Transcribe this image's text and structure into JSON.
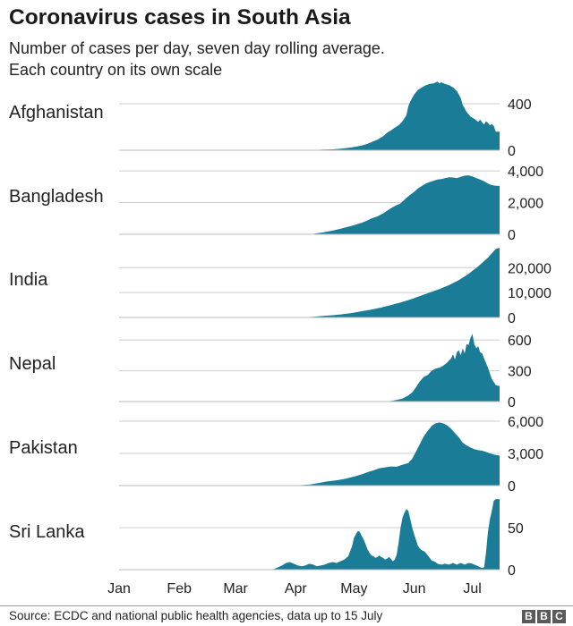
{
  "header": {
    "title": "Coronavirus cases in South Asia",
    "subtitle_line1": "Number of cases per day, seven day rolling average.",
    "subtitle_line2": "Each country on its own scale"
  },
  "footer": {
    "source": "Source: ECDC and national public health agencies, data up to 15 July",
    "logo": [
      "B",
      "B",
      "C"
    ]
  },
  "colors": {
    "area": "#1a7c97",
    "gridline": "#cccccc",
    "baseline": "#bbbbbb"
  },
  "chart_data": {
    "type": "area",
    "title": "Coronavirus cases in South Asia",
    "subtitle": "Number of cases per day, seven day rolling average. Each country on its own scale",
    "x_unit": "day of year 2020 (Jan 1 = 0)",
    "x_range": [
      0,
      196
    ],
    "x_ticks": [
      {
        "label": "Jan",
        "day": 0
      },
      {
        "label": "Feb",
        "day": 31
      },
      {
        "label": "Mar",
        "day": 60
      },
      {
        "label": "Apr",
        "day": 91
      },
      {
        "label": "May",
        "day": 121
      },
      {
        "label": "Jun",
        "day": 152
      },
      {
        "label": "Jul",
        "day": 182
      }
    ],
    "panels": [
      {
        "name": "Afghanistan",
        "ylim": [
          0,
          600
        ],
        "ticks": [
          {
            "value": 0,
            "label": "0"
          },
          {
            "value": 400,
            "label": "400"
          }
        ],
        "points": [
          [
            0,
            0
          ],
          [
            95,
            0
          ],
          [
            100,
            2
          ],
          [
            105,
            5
          ],
          [
            110,
            8
          ],
          [
            115,
            15
          ],
          [
            120,
            25
          ],
          [
            125,
            40
          ],
          [
            128,
            55
          ],
          [
            130,
            70
          ],
          [
            133,
            90
          ],
          [
            136,
            120
          ],
          [
            138,
            150
          ],
          [
            140,
            170
          ],
          [
            142,
            195
          ],
          [
            144,
            215
          ],
          [
            146,
            250
          ],
          [
            148,
            300
          ],
          [
            149,
            380
          ],
          [
            150,
            420
          ],
          [
            152,
            480
          ],
          [
            154,
            520
          ],
          [
            156,
            540
          ],
          [
            158,
            560
          ],
          [
            160,
            570
          ],
          [
            162,
            575
          ],
          [
            164,
            590
          ],
          [
            165,
            575
          ],
          [
            166,
            585
          ],
          [
            168,
            570
          ],
          [
            170,
            560
          ],
          [
            172,
            540
          ],
          [
            174,
            510
          ],
          [
            176,
            450
          ],
          [
            177,
            390
          ],
          [
            179,
            330
          ],
          [
            181,
            290
          ],
          [
            183,
            270
          ],
          [
            185,
            245
          ],
          [
            186,
            265
          ],
          [
            187,
            240
          ],
          [
            188,
            220
          ],
          [
            189,
            250
          ],
          [
            190,
            235
          ],
          [
            191,
            215
          ],
          [
            192,
            225
          ],
          [
            193,
            210
          ],
          [
            194,
            160
          ],
          [
            196,
            160
          ]
        ]
      },
      {
        "name": "Bangladesh",
        "ylim": [
          0,
          4400
        ],
        "ticks": [
          {
            "value": 0,
            "label": "0"
          },
          {
            "value": 2000,
            "label": "2,000"
          },
          {
            "value": 4000,
            "label": "4,000"
          }
        ],
        "points": [
          [
            0,
            0
          ],
          [
            97,
            0
          ],
          [
            100,
            30
          ],
          [
            105,
            120
          ],
          [
            110,
            230
          ],
          [
            115,
            380
          ],
          [
            120,
            540
          ],
          [
            125,
            730
          ],
          [
            128,
            880
          ],
          [
            130,
            1000
          ],
          [
            133,
            1130
          ],
          [
            136,
            1320
          ],
          [
            139,
            1560
          ],
          [
            142,
            1780
          ],
          [
            145,
            1950
          ],
          [
            148,
            2300
          ],
          [
            150,
            2500
          ],
          [
            152,
            2680
          ],
          [
            154,
            2900
          ],
          [
            156,
            3050
          ],
          [
            158,
            3200
          ],
          [
            160,
            3300
          ],
          [
            162,
            3380
          ],
          [
            164,
            3450
          ],
          [
            166,
            3480
          ],
          [
            168,
            3550
          ],
          [
            170,
            3600
          ],
          [
            172,
            3580
          ],
          [
            174,
            3550
          ],
          [
            176,
            3620
          ],
          [
            178,
            3700
          ],
          [
            180,
            3720
          ],
          [
            182,
            3650
          ],
          [
            184,
            3550
          ],
          [
            186,
            3450
          ],
          [
            188,
            3350
          ],
          [
            190,
            3200
          ],
          [
            192,
            3100
          ],
          [
            194,
            3060
          ],
          [
            196,
            3050
          ]
        ]
      },
      {
        "name": "India",
        "ylim": [
          0,
          28000
        ],
        "ticks": [
          {
            "value": 0,
            "label": "0"
          },
          {
            "value": 10000,
            "label": "10,000"
          },
          {
            "value": 20000,
            "label": "20,000"
          }
        ],
        "points": [
          [
            0,
            0
          ],
          [
            88,
            0
          ],
          [
            95,
            80
          ],
          [
            100,
            300
          ],
          [
            105,
            600
          ],
          [
            110,
            900
          ],
          [
            115,
            1300
          ],
          [
            120,
            1800
          ],
          [
            125,
            2500
          ],
          [
            130,
            3200
          ],
          [
            135,
            4000
          ],
          [
            140,
            5000
          ],
          [
            145,
            6000
          ],
          [
            150,
            7200
          ],
          [
            155,
            8600
          ],
          [
            160,
            10000
          ],
          [
            165,
            11400
          ],
          [
            170,
            13000
          ],
          [
            175,
            15000
          ],
          [
            180,
            17500
          ],
          [
            185,
            20500
          ],
          [
            190,
            24000
          ],
          [
            194,
            27500
          ],
          [
            196,
            28000
          ]
        ]
      },
      {
        "name": "Nepal",
        "ylim": [
          0,
          680
        ],
        "ticks": [
          {
            "value": 0,
            "label": "0"
          },
          {
            "value": 300,
            "label": "300"
          },
          {
            "value": 600,
            "label": "600"
          }
        ],
        "points": [
          [
            0,
            0
          ],
          [
            135,
            0
          ],
          [
            140,
            5
          ],
          [
            143,
            15
          ],
          [
            146,
            30
          ],
          [
            149,
            60
          ],
          [
            151,
            90
          ],
          [
            153,
            140
          ],
          [
            155,
            200
          ],
          [
            157,
            240
          ],
          [
            159,
            260
          ],
          [
            161,
            300
          ],
          [
            163,
            320
          ],
          [
            165,
            330
          ],
          [
            167,
            350
          ],
          [
            169,
            380
          ],
          [
            171,
            420
          ],
          [
            172,
            460
          ],
          [
            173,
            410
          ],
          [
            174,
            480
          ],
          [
            175,
            500
          ],
          [
            176,
            450
          ],
          [
            177,
            520
          ],
          [
            178,
            470
          ],
          [
            179,
            560
          ],
          [
            180,
            550
          ],
          [
            181,
            620
          ],
          [
            182,
            660
          ],
          [
            183,
            560
          ],
          [
            184,
            520
          ],
          [
            185,
            540
          ],
          [
            186,
            480
          ],
          [
            187,
            470
          ],
          [
            188,
            420
          ],
          [
            190,
            330
          ],
          [
            192,
            220
          ],
          [
            194,
            160
          ],
          [
            196,
            150
          ]
        ]
      },
      {
        "name": "Pakistan",
        "ylim": [
          0,
          6500
        ],
        "ticks": [
          {
            "value": 0,
            "label": "0"
          },
          {
            "value": 3000,
            "label": "3,000"
          },
          {
            "value": 6000,
            "label": "6,000"
          }
        ],
        "points": [
          [
            0,
            0
          ],
          [
            90,
            0
          ],
          [
            92,
            30
          ],
          [
            95,
            60
          ],
          [
            98,
            90
          ],
          [
            101,
            180
          ],
          [
            104,
            280
          ],
          [
            107,
            380
          ],
          [
            110,
            450
          ],
          [
            113,
            520
          ],
          [
            116,
            620
          ],
          [
            119,
            750
          ],
          [
            122,
            880
          ],
          [
            125,
            1050
          ],
          [
            128,
            1250
          ],
          [
            131,
            1420
          ],
          [
            134,
            1620
          ],
          [
            137,
            1700
          ],
          [
            140,
            1780
          ],
          [
            143,
            1760
          ],
          [
            146,
            1950
          ],
          [
            149,
            2100
          ],
          [
            151,
            2500
          ],
          [
            153,
            3200
          ],
          [
            155,
            3900
          ],
          [
            157,
            4600
          ],
          [
            159,
            5100
          ],
          [
            161,
            5550
          ],
          [
            163,
            5800
          ],
          [
            165,
            5880
          ],
          [
            167,
            5800
          ],
          [
            169,
            5600
          ],
          [
            171,
            5300
          ],
          [
            173,
            4900
          ],
          [
            175,
            4500
          ],
          [
            177,
            4000
          ],
          [
            179,
            3750
          ],
          [
            181,
            3550
          ],
          [
            183,
            3400
          ],
          [
            185,
            3300
          ],
          [
            187,
            3250
          ],
          [
            189,
            3150
          ],
          [
            191,
            3000
          ],
          [
            193,
            2900
          ],
          [
            194,
            2850
          ],
          [
            196,
            2800
          ]
        ]
      },
      {
        "name": "Sri Lanka",
        "ylim": [
          0,
          83
        ],
        "ticks": [
          {
            "value": 0,
            "label": "0"
          },
          {
            "value": 50,
            "label": "50"
          }
        ],
        "points": [
          [
            0,
            0
          ],
          [
            78,
            0
          ],
          [
            80,
            1
          ],
          [
            82,
            3
          ],
          [
            84,
            5
          ],
          [
            86,
            8
          ],
          [
            88,
            9
          ],
          [
            90,
            7
          ],
          [
            92,
            5
          ],
          [
            94,
            4
          ],
          [
            96,
            5
          ],
          [
            98,
            7
          ],
          [
            100,
            6
          ],
          [
            102,
            4
          ],
          [
            104,
            5
          ],
          [
            106,
            6
          ],
          [
            108,
            8
          ],
          [
            110,
            9
          ],
          [
            112,
            8
          ],
          [
            114,
            10
          ],
          [
            116,
            12
          ],
          [
            118,
            16
          ],
          [
            120,
            28
          ],
          [
            121,
            38
          ],
          [
            122,
            42
          ],
          [
            123,
            46
          ],
          [
            124,
            45
          ],
          [
            125,
            40
          ],
          [
            126,
            36
          ],
          [
            127,
            30
          ],
          [
            128,
            24
          ],
          [
            129,
            20
          ],
          [
            130,
            17
          ],
          [
            131,
            16
          ],
          [
            132,
            14
          ],
          [
            133,
            15
          ],
          [
            134,
            17
          ],
          [
            135,
            15
          ],
          [
            136,
            14
          ],
          [
            137,
            12
          ],
          [
            138,
            13
          ],
          [
            139,
            15
          ],
          [
            140,
            13
          ],
          [
            141,
            10
          ],
          [
            142,
            12
          ],
          [
            143,
            18
          ],
          [
            144,
            32
          ],
          [
            145,
            50
          ],
          [
            146,
            62
          ],
          [
            147,
            68
          ],
          [
            148,
            72
          ],
          [
            149,
            70
          ],
          [
            150,
            60
          ],
          [
            151,
            50
          ],
          [
            152,
            42
          ],
          [
            153,
            35
          ],
          [
            154,
            28
          ],
          [
            155,
            25
          ],
          [
            156,
            23
          ],
          [
            157,
            22
          ],
          [
            158,
            20
          ],
          [
            159,
            17
          ],
          [
            160,
            14
          ],
          [
            161,
            11
          ],
          [
            162,
            10
          ],
          [
            163,
            9
          ],
          [
            164,
            7
          ],
          [
            166,
            6
          ],
          [
            168,
            7
          ],
          [
            170,
            6
          ],
          [
            172,
            8
          ],
          [
            174,
            6
          ],
          [
            176,
            8
          ],
          [
            178,
            6
          ],
          [
            180,
            8
          ],
          [
            182,
            7
          ],
          [
            184,
            5
          ],
          [
            185,
            4
          ],
          [
            186,
            3
          ],
          [
            187,
            2
          ],
          [
            188,
            3
          ],
          [
            189,
            20
          ],
          [
            190,
            45
          ],
          [
            191,
            60
          ],
          [
            192,
            70
          ],
          [
            193,
            82
          ],
          [
            194,
            84
          ],
          [
            196,
            84
          ]
        ]
      }
    ]
  }
}
